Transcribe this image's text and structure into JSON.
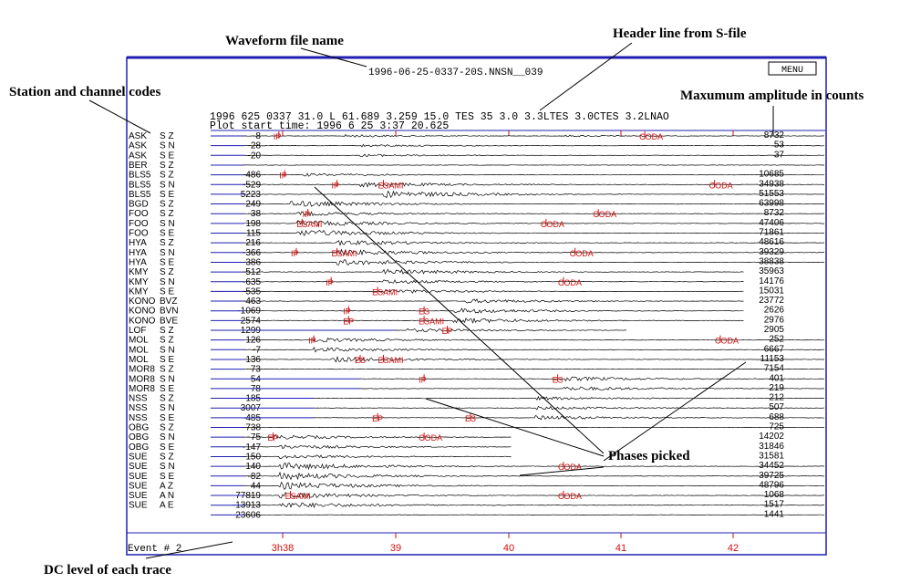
{
  "annotations": {
    "waveform_file_name": "Waveform file name",
    "header_line": "Header line from S-file",
    "station_codes": "Station and channel codes",
    "max_amplitude": "Maxumum amplitude in counts",
    "phases_picked": "Phases picked",
    "dc_level": "DC level of each trace"
  },
  "plot": {
    "filename": "1996-06-25-0337-20S.NNSN__039",
    "menu_label": "MENU",
    "header_line": "1996  625 0337 31.0 L  61.689   3.259 15.0  TES 35 3.0 3.3LTES 3.0CTES 3.2LNAO",
    "plot_start": "Plot start time: 1996  6 25   3:37  20.625",
    "event_label": "Event #    2",
    "time_ticks": [
      "3h38",
      "39",
      "40",
      "41",
      "42"
    ],
    "colors": {
      "frame": "#1f1fb4",
      "phase": "#d01010",
      "trace": "#000000"
    }
  },
  "traces": [
    {
      "st": "ASK",
      "ch": "S Z",
      "dc": "-8",
      "amp": "8732",
      "start": 0.0,
      "end": 1.0,
      "env": [
        [
          0.17,
          0.3
        ],
        [
          0.55,
          0.2
        ]
      ],
      "picks": [
        {
          "t": 0.05,
          "l": "IP"
        },
        {
          "t": 0.68,
          "l": "CODA"
        }
      ]
    },
    {
      "st": "ASK",
      "ch": "S N",
      "dc": "-28",
      "amp": "53",
      "start": 0.0,
      "end": 1.0,
      "env": [
        [
          0.2,
          0.3
        ]
      ],
      "picks": []
    },
    {
      "st": "ASK",
      "ch": "S E",
      "dc": "-20",
      "amp": "37",
      "start": 0.0,
      "end": 1.0,
      "env": [
        [
          0.2,
          0.3
        ]
      ],
      "picks": []
    },
    {
      "st": "BER",
      "ch": "S Z",
      "dc": "",
      "amp": "",
      "start": 0.0,
      "end": 1.0,
      "env": [],
      "picks": []
    },
    {
      "st": "BLS5",
      "ch": "S Z",
      "dc": "-486",
      "amp": "10685",
      "start": 0.0,
      "end": 1.0,
      "env": [
        [
          0.1,
          0.35
        ]
      ],
      "picks": [
        {
          "t": 0.06,
          "l": "IP"
        }
      ]
    },
    {
      "st": "BLS5",
      "ch": "S N",
      "dc": "-529",
      "amp": "34938",
      "start": 0.0,
      "end": 1.0,
      "env": [
        [
          0.2,
          0.6
        ]
      ],
      "picks": [
        {
          "t": 0.15,
          "l": "IP"
        },
        {
          "t": 0.23,
          "l": "ESAMI"
        },
        {
          "t": 0.8,
          "l": "CODA"
        }
      ]
    },
    {
      "st": "BLS5",
      "ch": "S E",
      "dc": "5223",
      "amp": "51553",
      "start": 0.0,
      "end": 1.0,
      "env": [
        [
          0.24,
          0.8
        ]
      ],
      "picks": []
    },
    {
      "st": "BGD",
      "ch": "S Z",
      "dc": "-249",
      "amp": "63998",
      "start": 0.0,
      "end": 1.0,
      "env": [
        [
          0.08,
          0.7
        ]
      ],
      "picks": []
    },
    {
      "st": "FOO",
      "ch": "S Z",
      "dc": "-38",
      "amp": "8732",
      "start": 0.0,
      "end": 1.0,
      "env": [
        [
          0.09,
          0.5
        ]
      ],
      "picks": [
        {
          "t": 0.1,
          "l": "IP"
        },
        {
          "t": 0.6,
          "l": "CODA"
        }
      ]
    },
    {
      "st": "FOO",
      "ch": "S N",
      "dc": "198",
      "amp": "47406",
      "start": 0.0,
      "end": 1.0,
      "env": [
        [
          0.09,
          0.7
        ]
      ],
      "picks": [
        {
          "t": 0.09,
          "l": "ESAMI"
        },
        {
          "t": 0.51,
          "l": "CODA"
        }
      ]
    },
    {
      "st": "FOO",
      "ch": "S E",
      "dc": "115",
      "amp": "71861",
      "start": 0.0,
      "end": 1.0,
      "env": [
        [
          0.09,
          0.8
        ]
      ],
      "picks": []
    },
    {
      "st": "HYA",
      "ch": "S Z",
      "dc": "216",
      "amp": "48616",
      "start": 0.0,
      "end": 1.0,
      "env": [
        [
          0.16,
          0.6
        ]
      ],
      "picks": []
    },
    {
      "st": "HYA",
      "ch": "S N",
      "dc": "-366",
      "amp": "39329",
      "start": 0.0,
      "end": 1.0,
      "env": [
        [
          0.16,
          0.7
        ]
      ],
      "picks": [
        {
          "t": 0.08,
          "l": "IP"
        },
        {
          "t": 0.15,
          "l": "ESAMI"
        },
        {
          "t": 0.56,
          "l": "CODA"
        }
      ]
    },
    {
      "st": "HYA",
      "ch": "S E",
      "dc": "-386",
      "amp": "38838",
      "start": 0.0,
      "end": 1.0,
      "env": [
        [
          0.16,
          0.7
        ]
      ],
      "picks": []
    },
    {
      "st": "KMY",
      "ch": "S Z",
      "dc": "-512",
      "amp": "35963",
      "start": 0.0,
      "end": 0.86,
      "env": [
        [
          0.24,
          0.6
        ]
      ],
      "picks": []
    },
    {
      "st": "KMY",
      "ch": "S N",
      "dc": "-635",
      "amp": "14176",
      "start": 0.0,
      "end": 0.86,
      "env": [
        [
          0.24,
          0.5
        ]
      ],
      "picks": [
        {
          "t": 0.14,
          "l": "IP"
        },
        {
          "t": 0.54,
          "l": "CODA"
        }
      ]
    },
    {
      "st": "KMY",
      "ch": "S E",
      "dc": "-535",
      "amp": "15031",
      "start": 0.0,
      "end": 0.86,
      "env": [
        [
          0.24,
          0.5
        ]
      ],
      "picks": [
        {
          "t": 0.22,
          "l": "ESAMI"
        }
      ]
    },
    {
      "st": "KONO",
      "ch": "BVZ",
      "dc": "-463",
      "amp": "23772",
      "start": 0.0,
      "end": 0.86,
      "env": [
        [
          0.38,
          0.5
        ]
      ],
      "picks": []
    },
    {
      "st": "KONO",
      "ch": "BVN",
      "dc": "-1069",
      "amp": "2626",
      "start": 0.0,
      "end": 0.86,
      "env": [
        [
          0.36,
          0.6
        ]
      ],
      "picks": [
        {
          "t": 0.17,
          "l": "IP"
        },
        {
          "t": 0.3,
          "l": "ES"
        }
      ]
    },
    {
      "st": "KONO",
      "ch": "BVE",
      "dc": "2574",
      "amp": "2976",
      "start": 0.0,
      "end": 0.86,
      "env": [
        [
          0.36,
          0.6
        ]
      ],
      "picks": [
        {
          "t": 0.17,
          "l": "EP"
        },
        {
          "t": 0.3,
          "l": "ESAMI"
        }
      ]
    },
    {
      "st": "LOF",
      "ch": "S Z",
      "dc": "1299",
      "amp": "2905",
      "start": 0.26,
      "end": 0.66,
      "env": [
        [
          0.28,
          0.4
        ]
      ],
      "picks": [
        {
          "t": 0.34,
          "l": "EP"
        }
      ]
    },
    {
      "st": "MOL",
      "ch": "S Z",
      "dc": "126",
      "amp": "252",
      "start": 0.0,
      "end": 1.0,
      "env": [
        [
          0.12,
          0.5
        ]
      ],
      "picks": [
        {
          "t": 0.11,
          "l": "IP"
        },
        {
          "t": 0.81,
          "l": "CODA"
        }
      ]
    },
    {
      "st": "MOL",
      "ch": "S N",
      "dc": "-7",
      "amp": "6667",
      "start": 0.0,
      "end": 1.0,
      "env": [
        [
          0.12,
          0.5
        ]
      ],
      "picks": []
    },
    {
      "st": "MOL",
      "ch": "S E",
      "dc": "136",
      "amp": "11153",
      "start": 0.0,
      "end": 1.0,
      "env": [
        [
          0.15,
          0.6
        ]
      ],
      "picks": [
        {
          "t": 0.19,
          "l": "ES"
        },
        {
          "t": 0.23,
          "l": "ESAMI"
        }
      ]
    },
    {
      "st": "MOR8",
      "ch": "S Z",
      "dc": "73",
      "amp": "7154",
      "start": 0.0,
      "end": 1.0,
      "env": [],
      "picks": []
    },
    {
      "st": "MOR8",
      "ch": "S N",
      "dc": "54",
      "amp": "401",
      "start": 0.2,
      "end": 1.0,
      "env": [
        [
          0.55,
          0.5
        ]
      ],
      "picks": [
        {
          "t": 0.3,
          "l": "IP"
        },
        {
          "t": 0.53,
          "l": "ES"
        }
      ]
    },
    {
      "st": "MOR8",
      "ch": "S E",
      "dc": "78",
      "amp": "219",
      "start": 0.2,
      "end": 1.0,
      "env": [
        [
          0.55,
          0.5
        ]
      ],
      "picks": []
    },
    {
      "st": "NSS",
      "ch": "S Z",
      "dc": "185",
      "amp": "212",
      "start": 0.12,
      "end": 1.0,
      "env": [
        [
          0.5,
          0.4
        ]
      ],
      "picks": []
    },
    {
      "st": "NSS",
      "ch": "S N",
      "dc": "3007",
      "amp": "507",
      "start": 0.12,
      "end": 1.0,
      "env": [
        [
          0.5,
          0.4
        ]
      ],
      "picks": []
    },
    {
      "st": "NSS",
      "ch": "S E",
      "dc": "-485",
      "amp": "688",
      "start": 0.12,
      "end": 1.0,
      "env": [
        [
          0.5,
          0.5
        ]
      ],
      "picks": [
        {
          "t": 0.22,
          "l": "EP"
        },
        {
          "t": 0.38,
          "l": "ES"
        }
      ]
    },
    {
      "st": "OBG",
      "ch": "S Z",
      "dc": "-738",
      "amp": "725",
      "start": 0.0,
      "end": 1.0,
      "env": [],
      "picks": []
    },
    {
      "st": "OBG",
      "ch": "S N",
      "dc": "-75",
      "amp": "14202",
      "start": 0.0,
      "end": 0.46,
      "env": [
        [
          0.05,
          0.5
        ]
      ],
      "picks": [
        {
          "t": 0.04,
          "l": "EP"
        },
        {
          "t": 0.3,
          "l": "CODA"
        }
      ]
    },
    {
      "st": "OBG",
      "ch": "S E",
      "dc": "-147",
      "amp": "31846",
      "start": 0.0,
      "end": 0.46,
      "env": [
        [
          0.06,
          0.5
        ]
      ],
      "picks": []
    },
    {
      "st": "SUE",
      "ch": "S Z",
      "dc": "-150",
      "amp": "31581",
      "start": 0.0,
      "end": 0.46,
      "env": [
        [
          0.06,
          0.5
        ]
      ],
      "picks": []
    },
    {
      "st": "SUE",
      "ch": "S N",
      "dc": "140",
      "amp": "34452",
      "start": 0.0,
      "end": 1.0,
      "env": [
        [
          0.06,
          0.8
        ]
      ],
      "picks": [
        {
          "t": 0.54,
          "l": "CODA"
        }
      ]
    },
    {
      "st": "SUE",
      "ch": "S E",
      "dc": "-82",
      "amp": "39725",
      "start": 0.0,
      "end": 1.0,
      "env": [
        [
          0.06,
          0.8
        ]
      ],
      "picks": []
    },
    {
      "st": "SUE",
      "ch": "A Z",
      "dc": "44",
      "amp": "48796",
      "start": 0.0,
      "end": 1.0,
      "env": [
        [
          0.06,
          0.8
        ]
      ],
      "picks": []
    },
    {
      "st": "SUE",
      "ch": "A N",
      "dc": "-77819",
      "amp": "1068",
      "start": 0.0,
      "end": 1.0,
      "env": [
        [
          0.06,
          0.7
        ]
      ],
      "picks": [
        {
          "t": 0.07,
          "l": "ESAMI"
        },
        {
          "t": 0.54,
          "l": "CODA"
        }
      ]
    },
    {
      "st": "SUE",
      "ch": "A E",
      "dc": "-13913",
      "amp": "1517",
      "start": 0.0,
      "end": 1.0,
      "env": [
        [
          0.06,
          0.7
        ]
      ],
      "picks": []
    },
    {
      "st": "",
      "ch": "",
      "dc": "23606",
      "amp": "1441",
      "start": 0.0,
      "end": 1.0,
      "env": [],
      "picks": []
    }
  ]
}
